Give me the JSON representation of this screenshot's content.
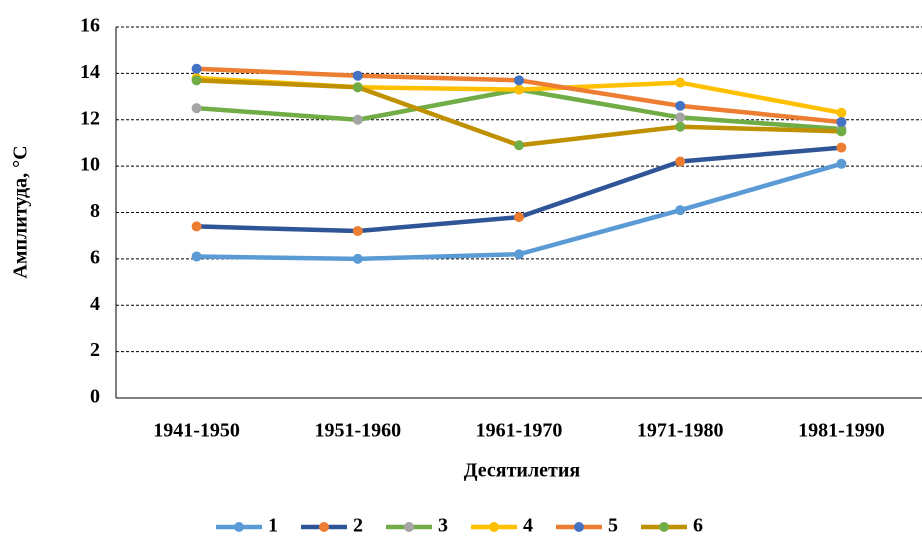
{
  "chart_data": {
    "type": "line",
    "x_label": "Десятилетия",
    "y_label": "Амплитуда, °С",
    "categories": [
      "1941-1950",
      "1951-1960",
      "1961-1970",
      "1971-1980",
      "1981-1990"
    ],
    "ylim": [
      0,
      16
    ],
    "yticks": [
      0,
      2,
      4,
      6,
      8,
      10,
      12,
      14,
      16
    ],
    "grid": true,
    "legend": "bottom",
    "series": [
      {
        "name": "1",
        "color": "#5b9bd5",
        "marker_color": "#5b9bd5",
        "values": [
          6.1,
          6.0,
          6.2,
          8.1,
          10.1
        ]
      },
      {
        "name": "2",
        "color": "#2f5597",
        "marker_color": "#ed7d31",
        "values": [
          7.4,
          7.2,
          7.8,
          10.2,
          10.8
        ]
      },
      {
        "name": "3",
        "color": "#70ad47",
        "marker_color": "#a5a5a5",
        "values": [
          12.5,
          12.0,
          13.3,
          12.1,
          11.6
        ]
      },
      {
        "name": "4",
        "color": "#ffc000",
        "marker_color": "#ffc000",
        "values": [
          13.8,
          13.4,
          13.3,
          13.6,
          12.3
        ]
      },
      {
        "name": "5",
        "color": "#ed7d31",
        "marker_color": "#4472c4",
        "values": [
          14.2,
          13.9,
          13.7,
          12.6,
          11.9
        ]
      },
      {
        "name": "6",
        "color": "#bf9000",
        "marker_color": "#70ad47",
        "values": [
          13.7,
          13.4,
          10.9,
          11.7,
          11.5
        ]
      }
    ]
  }
}
